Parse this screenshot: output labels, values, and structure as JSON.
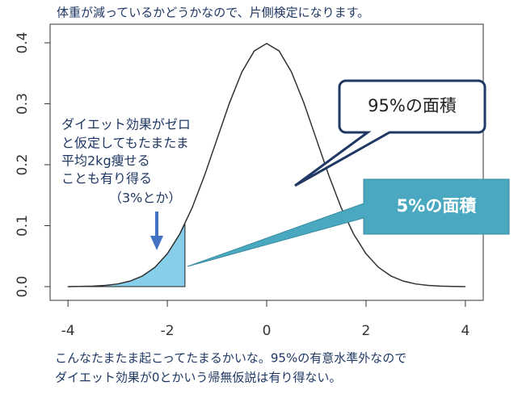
{
  "chart_data": {
    "type": "line",
    "title": "体重が減っているかどうかなので、片側検定になります。",
    "caption": [
      "こんなたまたま起こってたまるかいな。95%の有意水準外なので",
      "ダイエット効果が0とかいう帰無仮説は有り得ない。"
    ],
    "note": [
      "ダイエット効果がゼロ",
      "と仮定してもたまたま",
      "平均2kg痩せる",
      "ことも有り得る",
      "（3%とか）"
    ],
    "callouts": [
      "95%の面積",
      "5%の面積"
    ],
    "x": [
      -4,
      -3.75,
      -3.5,
      -3.25,
      -3,
      -2.75,
      -2.5,
      -2.25,
      -2,
      -1.75,
      -1.5,
      -1.25,
      -1,
      -0.75,
      -0.5,
      -0.25,
      0,
      0.25,
      0.5,
      0.75,
      1,
      1.25,
      1.5,
      1.75,
      2,
      2.25,
      2.5,
      2.75,
      3,
      3.25,
      3.5,
      3.75,
      4
    ],
    "values": [
      0.0001,
      0.0004,
      0.0009,
      0.002,
      0.0044,
      0.0091,
      0.0175,
      0.0317,
      0.054,
      0.0863,
      0.1295,
      0.1826,
      0.242,
      0.3011,
      0.3521,
      0.3867,
      0.3989,
      0.3867,
      0.3521,
      0.3011,
      0.242,
      0.1826,
      0.1295,
      0.0863,
      0.054,
      0.0317,
      0.0175,
      0.0091,
      0.0044,
      0.002,
      0.0009,
      0.0004,
      0.0001
    ],
    "color": "#333333",
    "area": {
      "x": [
        -4,
        -3.75,
        -3.5,
        -3.25,
        -3,
        -2.75,
        -2.5,
        -2.25,
        -2,
        -1.75,
        -1.645
      ],
      "values": [
        0.0001,
        0.0004,
        0.0009,
        0.002,
        0.0044,
        0.0091,
        0.0175,
        0.0317,
        0.054,
        0.0863,
        0.103
      ],
      "color": "#87ceeb"
    },
    "xlim": [
      -4.36,
      4.36
    ],
    "ylim": [
      -0.0225,
      0.4305
    ],
    "xticks": [
      -4,
      -2,
      0,
      2,
      4
    ],
    "yticks": [
      {
        "value": 0,
        "label": "0.0"
      },
      0.1,
      0.2,
      0.3,
      0.4
    ]
  }
}
